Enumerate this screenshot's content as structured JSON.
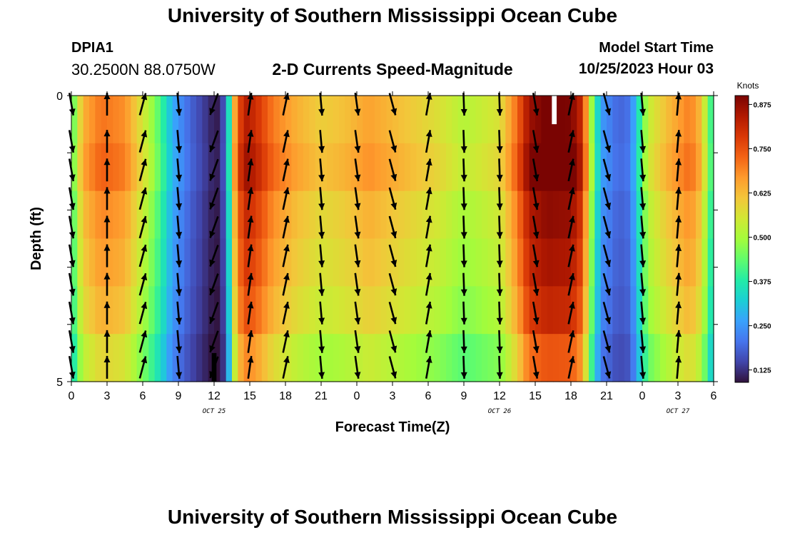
{
  "header": {
    "title": "University of Southern Mississippi Ocean Cube",
    "station": "DPIA1",
    "coordinates": "30.2500N  88.0750W",
    "plot_title": "2-D Currents Speed-Magnitude",
    "model_start_label": "Model Start Time",
    "model_start_value": "10/25/2023 Hour 03"
  },
  "footer": {
    "title": "University of Southern Mississippi Ocean Cube"
  },
  "chart_data": {
    "type": "heatmap",
    "title": "2-D Currents Speed-Magnitude",
    "xlabel": "Forecast Time(Z)",
    "ylabel": "Depth (ft)",
    "colorbar_label": "Knots",
    "colorbar_ticks": [
      "0.125",
      "0.250",
      "0.375",
      "0.500",
      "0.625",
      "0.750",
      "0.875"
    ],
    "color_range": [
      0.09,
      0.9
    ],
    "colormap": [
      "#30123b",
      "#4145ab",
      "#4675ed",
      "#39a2fc",
      "#1bcfd4",
      "#24eca6",
      "#61fc6c",
      "#a4fc3b",
      "#d1e834",
      "#f3c63a",
      "#fe9b2d",
      "#f36315",
      "#d93806",
      "#b11901",
      "#7a0402"
    ],
    "x_tick_labels": [
      "0",
      "3",
      "6",
      "9",
      "12",
      "15",
      "18",
      "21",
      "0",
      "3",
      "6",
      "9",
      "12",
      "15",
      "18",
      "21",
      "0",
      "3",
      "6"
    ],
    "date_labels": [
      {
        "text": "OCT 25",
        "hour": 12
      },
      {
        "text": "OCT 26",
        "hour": 36
      },
      {
        "text": "OCT 27",
        "hour": 51
      }
    ],
    "y_tick_labels": [
      "0",
      "5"
    ],
    "y_range": [
      0,
      5
    ],
    "x_range": [
      0,
      54
    ],
    "depth_levels": 5,
    "hour_step": 0.5,
    "speed_profile": [
      [
        0,
        0.38
      ],
      [
        0.5,
        0.52
      ],
      [
        1,
        0.62
      ],
      [
        2.5,
        0.69
      ],
      [
        4.5,
        0.66
      ],
      [
        5.5,
        0.58
      ],
      [
        6.5,
        0.5
      ],
      [
        7.5,
        0.4
      ],
      [
        8.5,
        0.27
      ],
      [
        10,
        0.18
      ],
      [
        12,
        0.1
      ],
      [
        12.5,
        0.1
      ],
      [
        13,
        0.2
      ],
      [
        13.3,
        0.37
      ],
      [
        13.7,
        0.62
      ],
      [
        14.5,
        0.82
      ],
      [
        15.5,
        0.78
      ],
      [
        17,
        0.68
      ],
      [
        19,
        0.62
      ],
      [
        21,
        0.58
      ],
      [
        23,
        0.6
      ],
      [
        25,
        0.64
      ],
      [
        27,
        0.61
      ],
      [
        29,
        0.58
      ],
      [
        31,
        0.55
      ],
      [
        33,
        0.5
      ],
      [
        36,
        0.55
      ],
      [
        37.5,
        0.7
      ],
      [
        38.5,
        0.84
      ],
      [
        40,
        0.88
      ],
      [
        42,
        0.87
      ],
      [
        43,
        0.78
      ],
      [
        43.5,
        0.55
      ],
      [
        44.5,
        0.25
      ],
      [
        46,
        0.18
      ],
      [
        47,
        0.2
      ],
      [
        47.7,
        0.35
      ],
      [
        48.5,
        0.52
      ],
      [
        50,
        0.6
      ],
      [
        52,
        0.68
      ],
      [
        53,
        0.6
      ],
      [
        53.5,
        0.45
      ],
      [
        54,
        0.35
      ]
    ],
    "depth_variation": [
      1.03,
      1.06,
      1.0,
      0.97,
      0.93,
      0.85
    ],
    "missing_cells": [
      {
        "hour_start": 40.4,
        "hour_end": 40.8,
        "depth_start": 0,
        "depth_end": 0.5,
        "color": "#ffffff"
      },
      {
        "hour_start": 11.8,
        "hour_end": 12.2,
        "depth_start": 4.5,
        "depth_end": 5,
        "color": "#000000"
      }
    ],
    "vector_hours": [
      0,
      3,
      6,
      9,
      12,
      15,
      18,
      21,
      24,
      27,
      30,
      33,
      36,
      39,
      42,
      45,
      48,
      51
    ],
    "vector_depths": [
      0.15,
      0.8,
      1.3,
      1.8,
      2.3,
      2.8,
      3.3,
      3.8,
      4.3,
      4.75
    ],
    "vector_directions_deg": [
      170,
      0,
      15,
      175,
      200,
      8,
      12,
      175,
      172,
      165,
      10,
      178,
      178,
      170,
      12,
      165,
      175,
      5
    ],
    "vector_length_knots_scale": 0.6
  }
}
